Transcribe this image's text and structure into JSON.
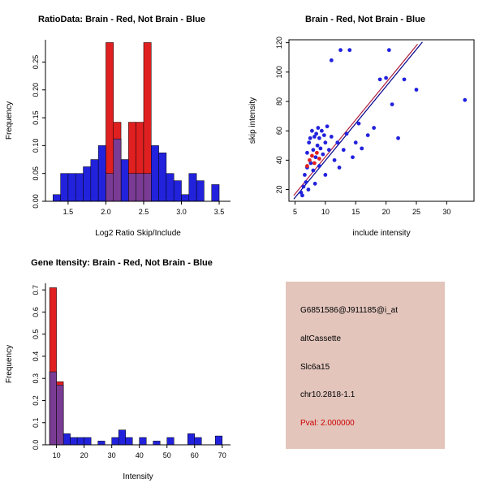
{
  "info_panel": {
    "bg_color": "#e3c5bc",
    "lines": [
      {
        "text": "G6851586@J911185@i_at",
        "color": "#000000"
      },
      {
        "text": "altCassette",
        "color": "#000000"
      },
      {
        "text": "Slc6a15",
        "color": "#000000"
      },
      {
        "text": "chr10.2818-1.1",
        "color": "#000000"
      },
      {
        "text": "Pval: 2.000000",
        "color": "#cc0000"
      }
    ]
  },
  "chart_data": [
    {
      "id": "ratio-hist",
      "type": "bar",
      "subtype": "overlaid-histogram",
      "title": "RatioData: Brain - Red, Not Brain - Blue",
      "xlabel": "Log2 Ratio Skip/Include",
      "ylabel": "Frequency",
      "xlim": [
        1.2,
        3.65
      ],
      "ylim": [
        0,
        0.29
      ],
      "box": false,
      "bin_width": 0.1,
      "overlap_color": "#7a3b94",
      "xticks": [
        {
          "v": 1.5,
          "label": "1.5"
        },
        {
          "v": 2.0,
          "label": "2.0"
        },
        {
          "v": 2.5,
          "label": "2.5"
        },
        {
          "v": 3.0,
          "label": "3.0"
        },
        {
          "v": 3.5,
          "label": "3.5"
        }
      ],
      "yticks": [
        {
          "v": 0.0,
          "label": "0.00"
        },
        {
          "v": 0.05,
          "label": "0.05"
        },
        {
          "v": 0.1,
          "label": "0.10"
        },
        {
          "v": 0.15,
          "label": "0.15"
        },
        {
          "v": 0.2,
          "label": "0.20"
        },
        {
          "v": 0.25,
          "label": "0.25"
        }
      ],
      "series": [
        {
          "name": "Not Brain",
          "color": "#2222dd",
          "bars": [
            [
              1.3,
              0.012
            ],
            [
              1.4,
              0.05
            ],
            [
              1.5,
              0.05
            ],
            [
              1.6,
              0.05
            ],
            [
              1.7,
              0.062
            ],
            [
              1.8,
              0.075
            ],
            [
              1.9,
              0.1
            ],
            [
              2.0,
              0.05
            ],
            [
              2.1,
              0.112
            ],
            [
              2.2,
              0.075
            ],
            [
              2.3,
              0.05
            ],
            [
              2.4,
              0.05
            ],
            [
              2.5,
              0.05
            ],
            [
              2.6,
              0.1
            ],
            [
              2.7,
              0.087
            ],
            [
              2.8,
              0.05
            ],
            [
              2.9,
              0.037
            ],
            [
              3.0,
              0.012
            ],
            [
              3.1,
              0.05
            ],
            [
              3.2,
              0.037
            ],
            [
              3.4,
              0.03
            ]
          ]
        },
        {
          "name": "Brain",
          "color": "#e02020",
          "bars": [
            [
              2.0,
              0.285
            ],
            [
              2.1,
              0.142
            ],
            [
              2.3,
              0.142
            ],
            [
              2.4,
              0.142
            ],
            [
              2.5,
              0.285
            ]
          ]
        }
      ]
    },
    {
      "id": "intensity-scatter",
      "type": "scatter",
      "title": "Brain - Red, Not Brain - Blue",
      "xlabel": "include intensity",
      "ylabel": "skip intensity",
      "xlim": [
        4,
        34.5
      ],
      "ylim": [
        12,
        122
      ],
      "box": true,
      "xticks": [
        {
          "v": 5,
          "label": "5"
        },
        {
          "v": 10,
          "label": "10"
        },
        {
          "v": 15,
          "label": "15"
        },
        {
          "v": 20,
          "label": "20"
        },
        {
          "v": 25,
          "label": "25"
        },
        {
          "v": 30,
          "label": "30"
        }
      ],
      "yticks": [
        {
          "v": 20,
          "label": "20"
        },
        {
          "v": 40,
          "label": "40"
        },
        {
          "v": 60,
          "label": "60"
        },
        {
          "v": 80,
          "label": "80"
        },
        {
          "v": 100,
          "label": "100"
        },
        {
          "v": 120,
          "label": "120"
        }
      ],
      "lines": [
        {
          "x1": 4.8,
          "y1": 16,
          "x2": 25.2,
          "y2": 119,
          "color": "#b02040"
        },
        {
          "x1": 4.8,
          "y1": 13.5,
          "x2": 26.0,
          "y2": 120.5,
          "color": "#00008b"
        }
      ],
      "series": [
        {
          "name": "Not Brain",
          "color": "#2222dd",
          "points": [
            [
              6,
              18
            ],
            [
              6.2,
              16
            ],
            [
              6.4,
              22
            ],
            [
              6.6,
              30
            ],
            [
              6.8,
              25
            ],
            [
              7,
              35
            ],
            [
              7,
              45
            ],
            [
              7.2,
              20
            ],
            [
              7.3,
              52
            ],
            [
              7.5,
              55
            ],
            [
              7.6,
              38
            ],
            [
              7.8,
              60
            ],
            [
              8,
              33
            ],
            [
              8,
              47
            ],
            [
              8.2,
              56
            ],
            [
              8.3,
              24
            ],
            [
              8.4,
              42
            ],
            [
              8.5,
              58
            ],
            [
              8.7,
              50
            ],
            [
              8.8,
              62
            ],
            [
              9,
              36
            ],
            [
              9,
              55
            ],
            [
              9.2,
              48
            ],
            [
              9.4,
              60
            ],
            [
              9.6,
              44
            ],
            [
              9.8,
              57
            ],
            [
              10,
              30
            ],
            [
              10,
              52
            ],
            [
              10.3,
              63
            ],
            [
              10.6,
              47
            ],
            [
              11,
              108
            ],
            [
              11,
              56
            ],
            [
              11.5,
              40
            ],
            [
              12,
              52
            ],
            [
              12.3,
              35
            ],
            [
              12.5,
              115
            ],
            [
              13,
              47
            ],
            [
              13.5,
              58
            ],
            [
              14,
              115
            ],
            [
              14.5,
              42
            ],
            [
              15,
              52
            ],
            [
              15.5,
              65
            ],
            [
              16,
              48
            ],
            [
              17,
              57
            ],
            [
              18,
              62
            ],
            [
              19,
              95
            ],
            [
              20,
              96
            ],
            [
              20.5,
              115
            ],
            [
              21,
              78
            ],
            [
              22,
              55
            ],
            [
              23,
              95
            ],
            [
              25,
              88
            ],
            [
              33,
              81
            ]
          ]
        },
        {
          "name": "Brain",
          "color": "#e02020",
          "points": [
            [
              7,
              36
            ],
            [
              7.4,
              40
            ],
            [
              7.8,
              43
            ],
            [
              8.2,
              38
            ],
            [
              8.6,
              45
            ],
            [
              9,
              41
            ]
          ]
        }
      ]
    },
    {
      "id": "gene-hist",
      "type": "bar",
      "subtype": "overlaid-histogram",
      "title": "Gene Itensity: Brain - Red, Not Brain - Blue",
      "xlabel": "Intensity",
      "ylabel": "Frequency",
      "xlim": [
        6,
        73
      ],
      "ylim": [
        0,
        0.73
      ],
      "box": false,
      "bin_width": 2.5,
      "overlap_color": "#7a3b94",
      "xticks": [
        {
          "v": 10,
          "label": "10"
        },
        {
          "v": 20,
          "label": "20"
        },
        {
          "v": 30,
          "label": "30"
        },
        {
          "v": 40,
          "label": "40"
        },
        {
          "v": 50,
          "label": "50"
        },
        {
          "v": 60,
          "label": "60"
        },
        {
          "v": 70,
          "label": "70"
        }
      ],
      "yticks": [
        {
          "v": 0.0,
          "label": "0.0"
        },
        {
          "v": 0.1,
          "label": "0.1"
        },
        {
          "v": 0.2,
          "label": "0.2"
        },
        {
          "v": 0.3,
          "label": "0.3"
        },
        {
          "v": 0.4,
          "label": "0.4"
        },
        {
          "v": 0.5,
          "label": "0.5"
        },
        {
          "v": 0.6,
          "label": "0.6"
        },
        {
          "v": 0.7,
          "label": "0.7"
        }
      ],
      "series": [
        {
          "name": "Not Brain",
          "color": "#2222dd",
          "bars": [
            [
              7.5,
              0.33
            ],
            [
              10,
              0.27
            ],
            [
              12.5,
              0.05
            ],
            [
              15,
              0.033
            ],
            [
              17.5,
              0.033
            ],
            [
              20,
              0.033
            ],
            [
              25,
              0.017
            ],
            [
              30,
              0.033
            ],
            [
              32.5,
              0.067
            ],
            [
              35,
              0.033
            ],
            [
              40,
              0.033
            ],
            [
              45,
              0.017
            ],
            [
              50,
              0.033
            ],
            [
              57.5,
              0.05
            ],
            [
              60,
              0.033
            ],
            [
              67.5,
              0.04
            ]
          ]
        },
        {
          "name": "Brain",
          "color": "#e02020",
          "bars": [
            [
              7.5,
              0.71
            ],
            [
              10,
              0.285
            ]
          ]
        }
      ]
    }
  ]
}
